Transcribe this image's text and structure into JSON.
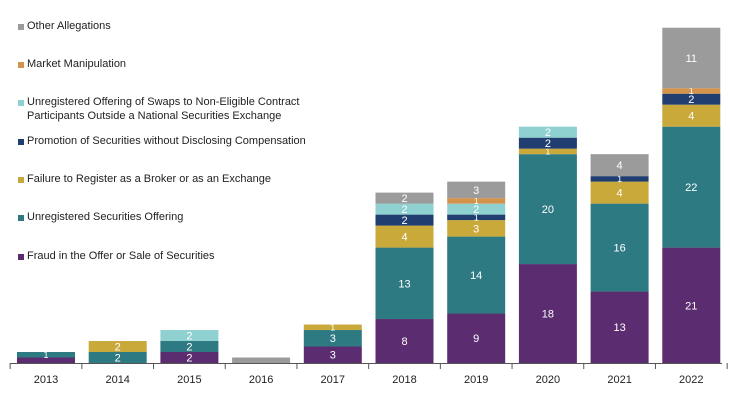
{
  "chart_data": {
    "type": "bar",
    "stacked": true,
    "categories": [
      "2013",
      "2014",
      "2015",
      "2016",
      "2017",
      "2018",
      "2019",
      "2020",
      "2021",
      "2022"
    ],
    "series": [
      {
        "name": "Fraud in the Offer or Sale of Securities",
        "color": "#5b2c6f",
        "values": [
          1,
          0,
          2,
          0,
          3,
          8,
          9,
          18,
          13,
          21
        ],
        "labels": [
          "",
          "",
          "2",
          "",
          "3",
          "8",
          "9",
          "18",
          "13",
          "21"
        ]
      },
      {
        "name": "Unregistered Securities Offering",
        "color": "#2e7a82",
        "values": [
          1,
          2,
          2,
          0,
          3,
          13,
          14,
          20,
          16,
          22
        ],
        "labels": [
          "1",
          "2",
          "2",
          "",
          "3",
          "13",
          "14",
          "20",
          "16",
          "22"
        ]
      },
      {
        "name": "Failure to Register as a Broker or as an Exchange",
        "color": "#c9a93a",
        "values": [
          0,
          2,
          0,
          0,
          1,
          4,
          3,
          1,
          4,
          4
        ],
        "labels": [
          "",
          "2",
          "",
          "",
          "1",
          "4",
          "3",
          "1",
          "4",
          "4"
        ]
      },
      {
        "name": "Promotion of Securities without Disclosing Compensation",
        "color": "#203f70",
        "values": [
          0,
          0,
          0,
          0,
          0,
          2,
          1,
          2,
          1,
          2
        ],
        "labels": [
          "",
          "",
          "",
          "",
          "",
          "2",
          "1",
          "2",
          "1",
          "2"
        ]
      },
      {
        "name": "Unregistered Offering of Swaps to Non-Eligible Contract\nParticipants Outside a National Securities Exchange",
        "color": "#8fd0d0",
        "values": [
          0,
          0,
          2,
          0,
          0,
          2,
          2,
          2,
          0,
          0
        ],
        "labels": [
          "",
          "",
          "2",
          "",
          "",
          "2",
          "2",
          "2",
          "",
          ""
        ]
      },
      {
        "name": "Market Manipulation",
        "color": "#d3934a",
        "values": [
          0,
          0,
          0,
          0,
          0,
          0,
          1,
          0,
          0,
          1
        ],
        "labels": [
          "",
          "",
          "",
          "",
          "",
          "",
          "1",
          "",
          "",
          "1"
        ]
      },
      {
        "name": "Other Allegations",
        "color": "#9b9b9b",
        "values": [
          0,
          0,
          0,
          1,
          0,
          2,
          3,
          0,
          4,
          11
        ],
        "labels": [
          "",
          "",
          "",
          "",
          "",
          "2",
          "3",
          "",
          "4",
          "11"
        ]
      }
    ],
    "legend_order": [
      6,
      5,
      4,
      3,
      2,
      1,
      0
    ],
    "title": "",
    "xlabel": "",
    "ylabel": "",
    "ylim": [
      0,
      64
    ],
    "grid": false,
    "legend_position": "top-left"
  }
}
